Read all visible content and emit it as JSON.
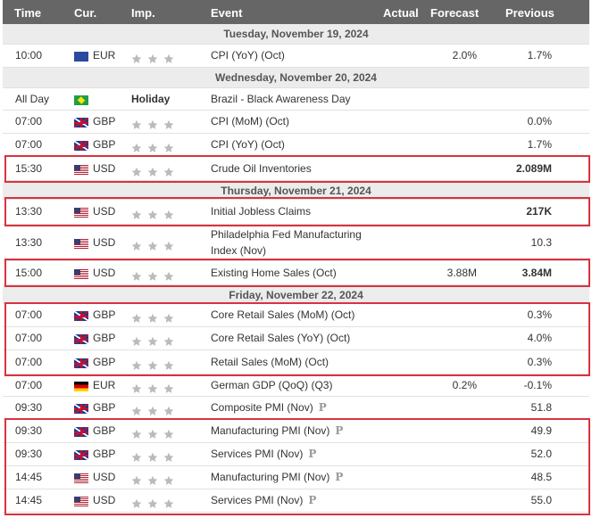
{
  "header": {
    "time": "Time",
    "cur": "Cur.",
    "imp": "Imp.",
    "event": "Event",
    "actual": "Actual",
    "forecast": "Forecast",
    "previous": "Previous"
  },
  "rows": [
    {
      "type": "date",
      "label": "Tuesday, November 19, 2024"
    },
    {
      "type": "event",
      "time": "10:00",
      "flag": "eu",
      "currency": "EUR",
      "event": "CPI (YoY) (Oct)",
      "forecast": "2.0%",
      "previous": "1.7%"
    },
    {
      "type": "date",
      "label": "Wednesday, November 20, 2024"
    },
    {
      "type": "holiday",
      "time": "All Day",
      "flag": "br",
      "holiday": "Holiday",
      "event": "Brazil - Black Awareness Day"
    },
    {
      "type": "event",
      "time": "07:00",
      "flag": "gb",
      "currency": "GBP",
      "event": "CPI (MoM) (Oct)",
      "forecast": "",
      "previous": "0.0%"
    },
    {
      "type": "event",
      "time": "07:00",
      "flag": "gb",
      "currency": "GBP",
      "event": "CPI (YoY) (Oct)",
      "forecast": "",
      "previous": "1.7%"
    },
    {
      "type": "event",
      "time": "15:30",
      "flag": "us",
      "currency": "USD",
      "event": "Crude Oil Inventories",
      "forecast": "",
      "previous": "2.089M",
      "bold_previous": true
    },
    {
      "type": "date",
      "label": "Thursday, November 21, 2024"
    },
    {
      "type": "event",
      "time": "13:30",
      "flag": "us",
      "currency": "USD",
      "event": "Initial Jobless Claims",
      "forecast": "",
      "previous": "217K",
      "bold_previous": true
    },
    {
      "type": "event",
      "time": "13:30",
      "flag": "us",
      "currency": "USD",
      "event": "Philadelphia Fed Manufacturing",
      "event2": "Index (Nov)",
      "forecast": "",
      "previous": "10.3",
      "tall": true
    },
    {
      "type": "event",
      "time": "15:00",
      "flag": "us",
      "currency": "USD",
      "event": "Existing Home Sales (Oct)",
      "forecast": "3.88M",
      "previous": "3.84M",
      "bold_previous": true
    },
    {
      "type": "date",
      "label": "Friday, November 22, 2024"
    },
    {
      "type": "event",
      "time": "07:00",
      "flag": "gb",
      "currency": "GBP",
      "event": "Core Retail Sales (MoM) (Oct)",
      "forecast": "",
      "previous": "0.3%"
    },
    {
      "type": "event",
      "time": "07:00",
      "flag": "gb",
      "currency": "GBP",
      "event": "Core Retail Sales (YoY) (Oct)",
      "forecast": "",
      "previous": "4.0%"
    },
    {
      "type": "event",
      "time": "07:00",
      "flag": "gb",
      "currency": "GBP",
      "event": "Retail Sales (MoM) (Oct)",
      "forecast": "",
      "previous": "0.3%"
    },
    {
      "type": "event",
      "time": "07:00",
      "flag": "de",
      "currency": "EUR",
      "event": "German GDP (QoQ) (Q3)",
      "forecast": "0.2%",
      "previous": "-0.1%"
    },
    {
      "type": "event",
      "time": "09:30",
      "flag": "gb",
      "currency": "GBP",
      "event": "Composite PMI (Nov)",
      "preliminary": "P",
      "forecast": "",
      "previous": "51.8"
    },
    {
      "type": "event",
      "time": "09:30",
      "flag": "gb",
      "currency": "GBP",
      "event": "Manufacturing PMI (Nov)",
      "preliminary": "P",
      "forecast": "",
      "previous": "49.9"
    },
    {
      "type": "event",
      "time": "09:30",
      "flag": "gb",
      "currency": "GBP",
      "event": "Services PMI (Nov)",
      "preliminary": "P",
      "forecast": "",
      "previous": "52.0"
    },
    {
      "type": "event",
      "time": "14:45",
      "flag": "us",
      "currency": "USD",
      "event": "Manufacturing PMI (Nov)",
      "preliminary": "P",
      "forecast": "",
      "previous": "48.5"
    },
    {
      "type": "event",
      "time": "14:45",
      "flag": "us",
      "currency": "USD",
      "event": "Services PMI (Nov)",
      "preliminary": "P",
      "forecast": "",
      "previous": "55.0"
    }
  ],
  "colors": {
    "header_bg": "#666666",
    "date_bg": "#ececec",
    "highlight": "#d9333f",
    "star": "#bbbbbb"
  }
}
